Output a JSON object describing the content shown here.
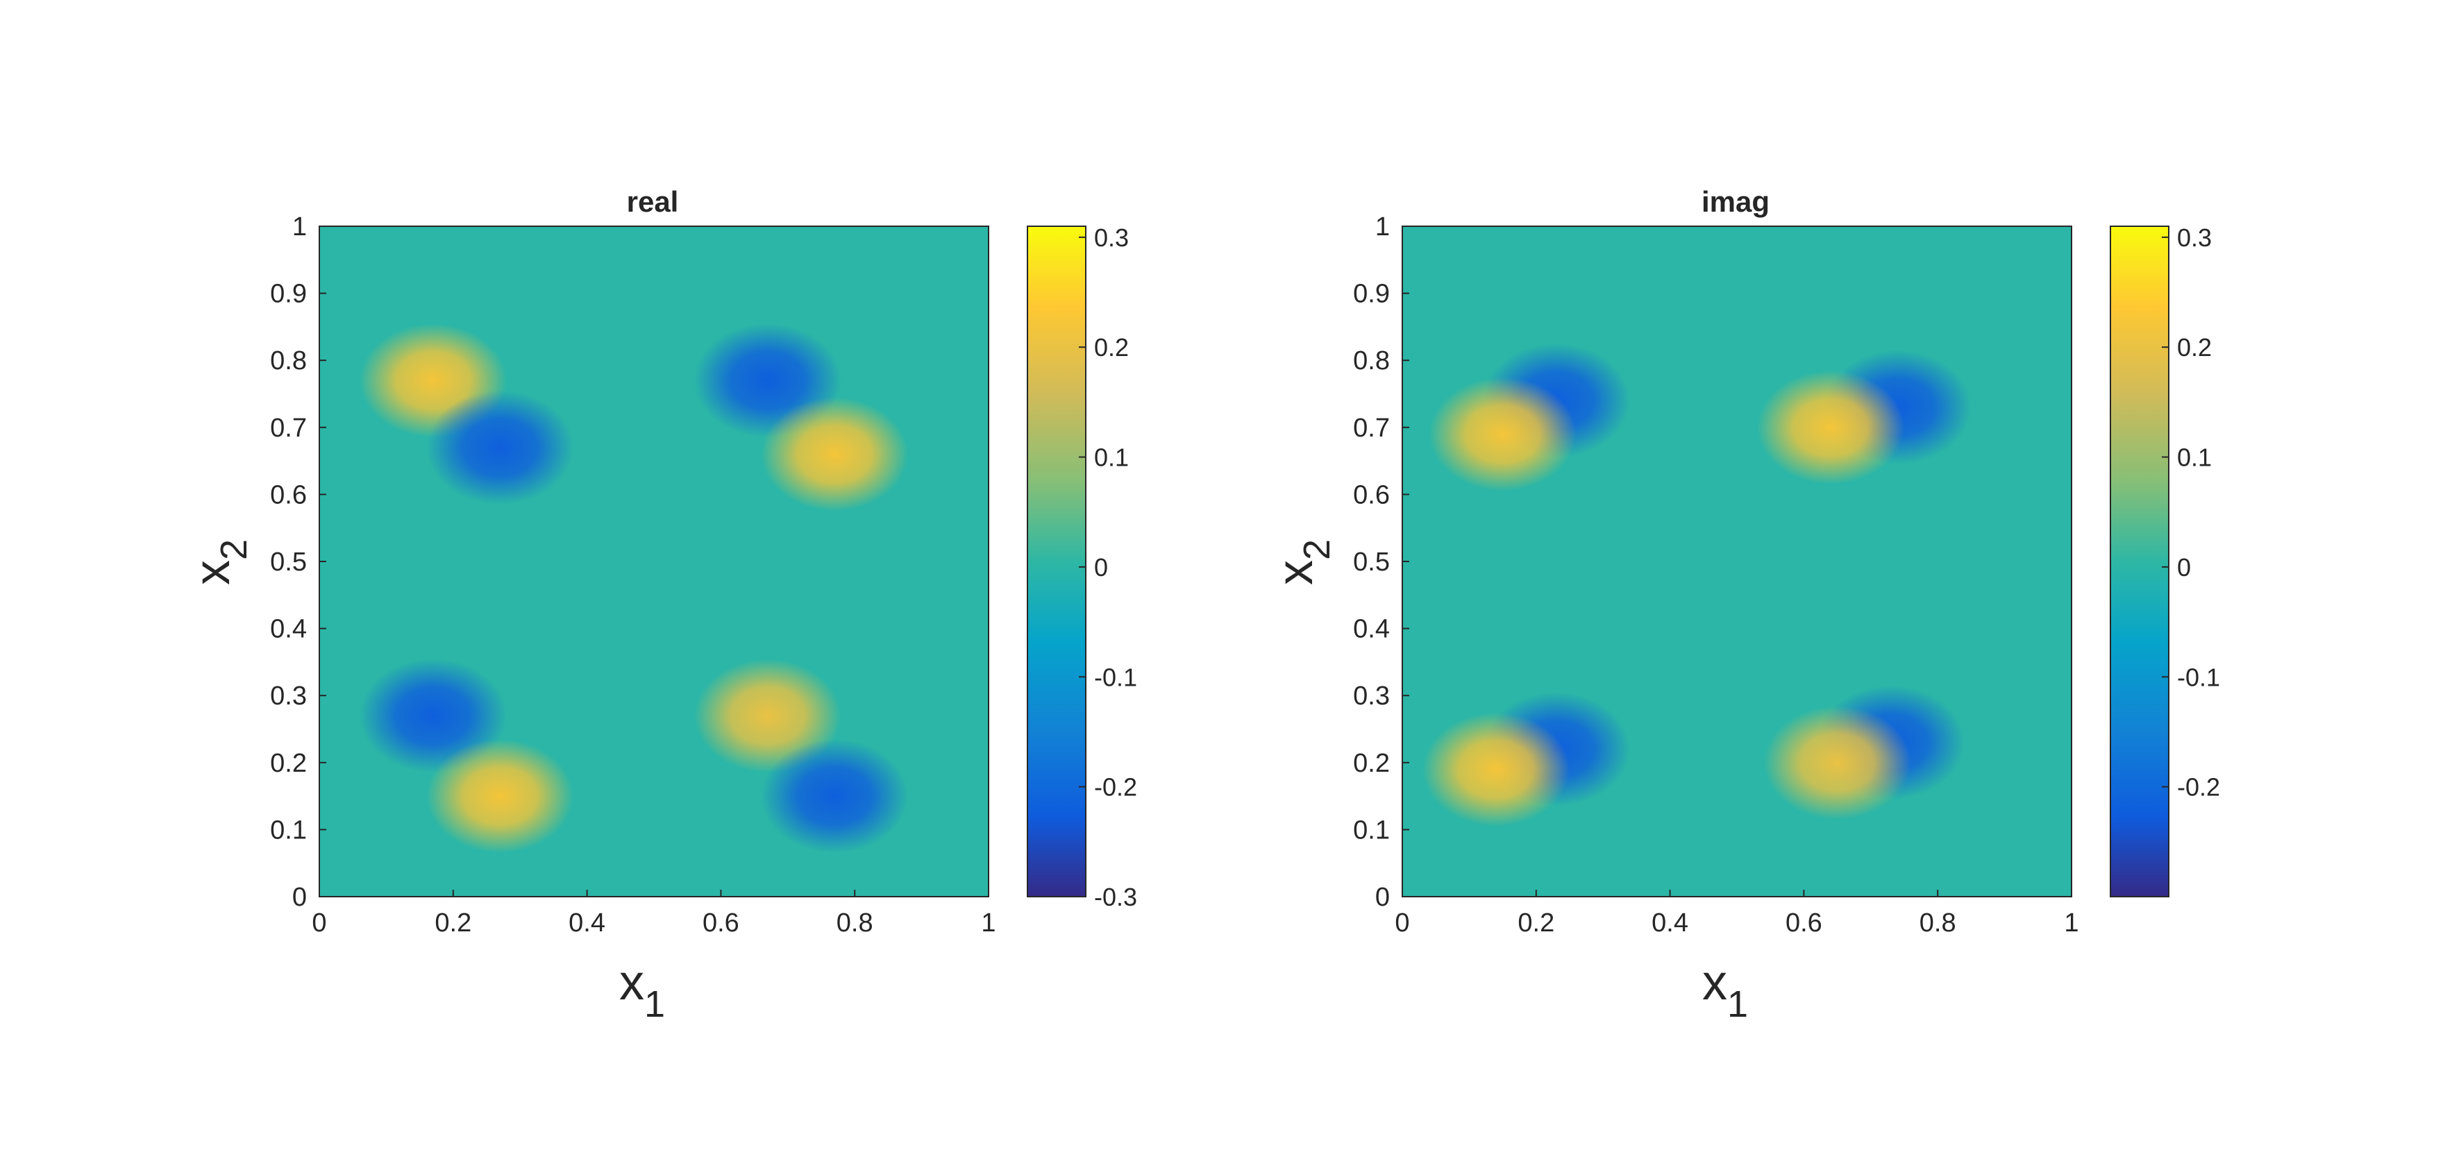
{
  "chart_data": [
    {
      "type": "heatmap",
      "title": "real",
      "xlabel": "x",
      "xlabel_sub": "1",
      "ylabel": "x",
      "ylabel_sub": "2",
      "xlim": [
        0,
        1
      ],
      "ylim": [
        0,
        1
      ],
      "xticks": [
        "0",
        "0.2",
        "0.4",
        "0.6",
        "0.8",
        "1"
      ],
      "yticks": [
        "0",
        "0.1",
        "0.2",
        "0.3",
        "0.4",
        "0.5",
        "0.6",
        "0.7",
        "0.8",
        "0.9",
        "1"
      ],
      "colorbar": {
        "colormap": "parula",
        "clim": [
          -0.3,
          0.31
        ],
        "ticks": [
          -0.3,
          -0.2,
          -0.1,
          0,
          0.1,
          0.2,
          0.3
        ],
        "tick_labels": [
          "-0.3",
          "-0.2",
          "-0.1",
          "0",
          "0.1",
          "0.2",
          "0.3"
        ]
      },
      "background_value": 0.0,
      "features": [
        {
          "x": 0.17,
          "y": 0.77,
          "value": 0.22
        },
        {
          "x": 0.27,
          "y": 0.67,
          "value": -0.22
        },
        {
          "x": 0.67,
          "y": 0.77,
          "value": -0.22
        },
        {
          "x": 0.77,
          "y": 0.66,
          "value": 0.22
        },
        {
          "x": 0.17,
          "y": 0.27,
          "value": -0.22
        },
        {
          "x": 0.27,
          "y": 0.15,
          "value": 0.22
        },
        {
          "x": 0.67,
          "y": 0.27,
          "value": 0.2
        },
        {
          "x": 0.77,
          "y": 0.15,
          "value": -0.22
        }
      ]
    },
    {
      "type": "heatmap",
      "title": "imag",
      "xlabel": "x",
      "xlabel_sub": "1",
      "ylabel": "x",
      "ylabel_sub": "2",
      "xlim": [
        0,
        1
      ],
      "ylim": [
        0,
        1
      ],
      "xticks": [
        "0",
        "0.2",
        "0.4",
        "0.6",
        "0.8",
        "1"
      ],
      "yticks": [
        "0",
        "0.1",
        "0.2",
        "0.3",
        "0.4",
        "0.5",
        "0.6",
        "0.7",
        "0.8",
        "0.9",
        "1"
      ],
      "colorbar": {
        "colormap": "parula",
        "clim": [
          -0.3,
          0.31
        ],
        "ticks": [
          -0.2,
          -0.1,
          0,
          0.1,
          0.2,
          0.3
        ],
        "tick_labels": [
          "-0.2",
          "-0.1",
          "0",
          "0.1",
          "0.2",
          "0.3"
        ]
      },
      "background_value": 0.0,
      "features": [
        {
          "x": 0.23,
          "y": 0.74,
          "value": -0.22
        },
        {
          "x": 0.15,
          "y": 0.69,
          "value": 0.22
        },
        {
          "x": 0.74,
          "y": 0.73,
          "value": -0.22
        },
        {
          "x": 0.64,
          "y": 0.7,
          "value": 0.22
        },
        {
          "x": 0.23,
          "y": 0.22,
          "value": -0.22
        },
        {
          "x": 0.14,
          "y": 0.19,
          "value": 0.22
        },
        {
          "x": 0.73,
          "y": 0.23,
          "value": -0.22
        },
        {
          "x": 0.65,
          "y": 0.2,
          "value": 0.2
        }
      ]
    }
  ]
}
